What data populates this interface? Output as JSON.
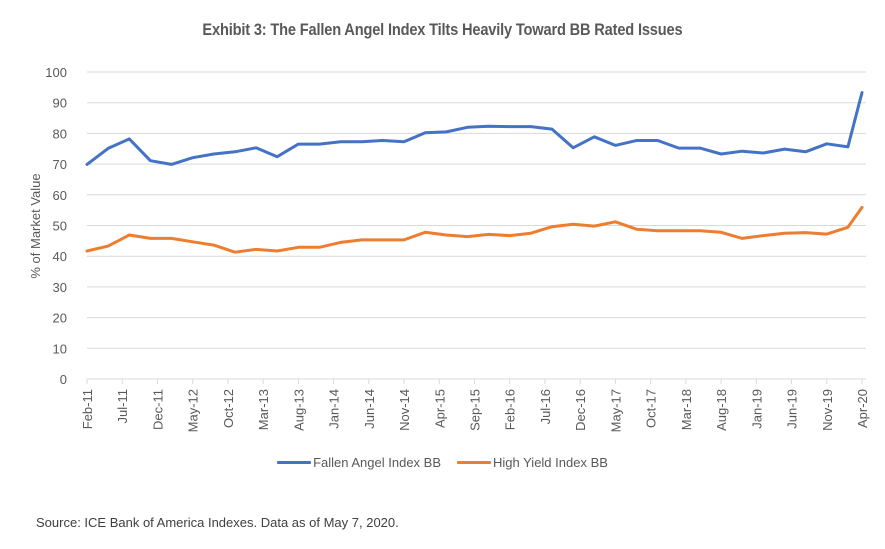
{
  "chart_data": {
    "type": "line",
    "title": "Exhibit 3: The Fallen Angel Index Tilts Heavily Toward BB Rated Issues",
    "xlabel": "",
    "ylabel": "% of Market Value",
    "ylim": [
      0,
      100
    ],
    "yticks": [
      0,
      10,
      20,
      30,
      40,
      50,
      60,
      70,
      80,
      90,
      100
    ],
    "grid": true,
    "legend_position": "bottom",
    "x_tick_labels": [
      "Feb-11",
      "Jul-11",
      "Dec-11",
      "May-12",
      "Oct-12",
      "Mar-13",
      "Aug-13",
      "Jan-14",
      "Jun-14",
      "Nov-14",
      "Apr-15",
      "Sep-15",
      "Feb-16",
      "Jul-16",
      "Dec-16",
      "May-17",
      "Oct-17",
      "Mar-18",
      "Aug-18",
      "Jan-19",
      "Jun-19",
      "Nov-19",
      "Apr-20"
    ],
    "x_range_months": [
      0,
      110
    ],
    "x_months": [
      0,
      3,
      6,
      9,
      12,
      15,
      18,
      21,
      24,
      27,
      30,
      33,
      36,
      39,
      42,
      45,
      48,
      51,
      54,
      57,
      60,
      63,
      66,
      69,
      72,
      75,
      78,
      81,
      84,
      87,
      90,
      93,
      96,
      99,
      102,
      105,
      108,
      110
    ],
    "series": [
      {
        "name": "Fallen Angel Index BB",
        "color": "#4472C4",
        "values": [
          69.9,
          75.1,
          78.2,
          71.1,
          69.9,
          72.1,
          73.3,
          74.0,
          75.3,
          72.4,
          76.5,
          76.5,
          77.3,
          77.3,
          77.7,
          77.3,
          80.2,
          80.5,
          82.0,
          82.3,
          82.2,
          82.2,
          81.4,
          75.3,
          78.9,
          76.1,
          77.7,
          77.7,
          75.2,
          75.2,
          73.3,
          74.2,
          73.6,
          74.9,
          74.0,
          76.6,
          75.6,
          93.3
        ]
      },
      {
        "name": "High Yield Index BB",
        "color": "#ED7D31",
        "values": [
          41.7,
          43.3,
          46.9,
          45.8,
          45.8,
          44.7,
          43.6,
          41.3,
          42.2,
          41.7,
          42.9,
          42.9,
          44.5,
          45.3,
          45.3,
          45.3,
          47.8,
          46.9,
          46.4,
          47.1,
          46.7,
          47.5,
          49.6,
          50.4,
          49.8,
          51.2,
          48.8,
          48.3,
          48.3,
          48.3,
          47.8,
          45.8,
          46.7,
          47.5,
          47.7,
          47.2,
          49.4,
          55.9
        ]
      }
    ]
  },
  "source_note": "Source:  ICE Bank of America  Indexes. Data as of May 7, 2020."
}
